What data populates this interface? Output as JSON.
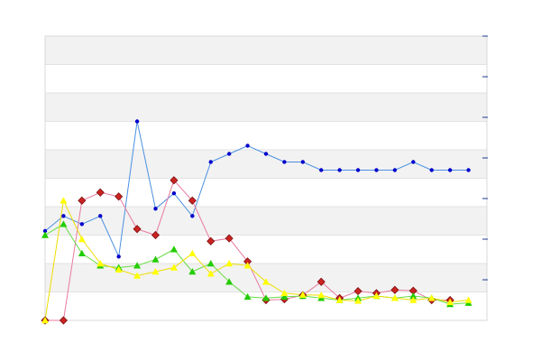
{
  "chart_data": {
    "type": "line",
    "title": "",
    "xlabel": "",
    "ylabel": "",
    "x": [
      1,
      2,
      3,
      4,
      5,
      6,
      7,
      8,
      9,
      10,
      11,
      12,
      13,
      14,
      15,
      16,
      17,
      18,
      19,
      20,
      21,
      22,
      23,
      24,
      25
    ],
    "ylim": [
      0,
      7
    ],
    "ytick_count": 7,
    "grid": "horizontal-bands",
    "legend": "none",
    "series": [
      {
        "color": "#4a90e2",
        "marker": "circle",
        "marker_color": "#0000cc",
        "values": [
          2.2,
          2.57,
          2.37,
          2.57,
          1.57,
          4.9,
          2.75,
          3.13,
          2.57,
          3.9,
          4.1,
          4.3,
          4.1,
          3.9,
          3.9,
          3.7,
          3.7,
          3.7,
          3.7,
          3.7,
          3.9,
          3.7,
          3.7,
          3.7,
          null
        ]
      },
      {
        "color": "#e87aa0",
        "marker": "diamond",
        "marker_color": "#cc2222",
        "values": [
          0,
          0,
          2.95,
          3.15,
          3.05,
          2.25,
          2.1,
          3.45,
          2.95,
          1.95,
          2.02,
          1.45,
          0.5,
          0.52,
          0.62,
          0.95,
          0.55,
          0.72,
          0.67,
          0.75,
          0.73,
          0.5,
          0.5,
          null,
          null
        ]
      },
      {
        "color": "#66dd44",
        "marker": "triangle",
        "marker_color": "#22cc00",
        "values": [
          2.1,
          2.37,
          1.65,
          1.35,
          1.3,
          1.35,
          1.5,
          1.75,
          1.2,
          1.4,
          0.95,
          0.58,
          0.55,
          0.58,
          0.6,
          0.55,
          0.5,
          0.55,
          0.6,
          0.55,
          0.6,
          0.55,
          0.4,
          0.43,
          null
        ]
      },
      {
        "color": "#eedd00",
        "marker": "triangle",
        "marker_color": "#ffff00",
        "values": [
          0,
          2.95,
          2.0,
          1.4,
          1.25,
          1.1,
          1.2,
          1.3,
          1.65,
          1.15,
          1.4,
          1.35,
          0.95,
          0.67,
          0.63,
          0.62,
          0.5,
          0.48,
          0.6,
          0.55,
          0.5,
          0.55,
          0.45,
          0.5,
          null
        ]
      }
    ]
  }
}
